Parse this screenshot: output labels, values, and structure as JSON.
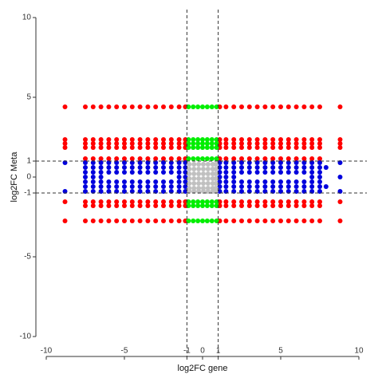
{
  "chart_data": {
    "type": "scatter",
    "x_label": "log2FC gene",
    "y_label": "log2FC Meta",
    "xlim": [
      -10,
      10
    ],
    "ylim": [
      -10,
      10
    ],
    "xticks": [
      -10,
      -5,
      -1,
      0,
      1,
      5,
      10
    ],
    "yticks": [
      -10,
      -5,
      -1,
      0,
      1,
      5,
      10
    ],
    "vlines": [
      -1,
      1
    ],
    "hlines": [
      -1,
      1
    ],
    "series": [
      {
        "color": "#ff0000",
        "y": 4.4,
        "x": [
          -8.8,
          -7.5,
          -7,
          -6.5,
          -6,
          -5.5,
          -5,
          -4.5,
          -4,
          -3.5,
          -3,
          -2.5,
          -2,
          -1.5,
          -1.1,
          1.1,
          1.5,
          2,
          2.5,
          3,
          3.5,
          4,
          4.5,
          5,
          5.5,
          6,
          6.5,
          7,
          7.5,
          8.8
        ]
      },
      {
        "color": "#ff0000",
        "y": 2.35,
        "x": [
          -8.8,
          -7.5,
          -7,
          -6.5,
          -6,
          -5.5,
          -5,
          -4.5,
          -4,
          -3.5,
          -3,
          -2.5,
          -2,
          -1.5,
          -1.1,
          1.1,
          1.5,
          2,
          2.5,
          3,
          3.5,
          4,
          4.5,
          5,
          5.5,
          6,
          6.5,
          7,
          7.5,
          8.8
        ]
      },
      {
        "color": "#ff0000",
        "y": 2.1,
        "x": [
          -8.8,
          -7.5,
          -7,
          -6.5,
          -6,
          -5.5,
          -5,
          -4.5,
          -4,
          -3.5,
          -3,
          -2.5,
          -2,
          -1.5,
          -1.1,
          1.1,
          1.5,
          2,
          2.5,
          3,
          3.5,
          4,
          4.5,
          5,
          5.5,
          6,
          6.5,
          7,
          7.5,
          8.8
        ]
      },
      {
        "color": "#ff0000",
        "y": 1.85,
        "x": [
          -8.8,
          -7.5,
          -7,
          -6.5,
          -6,
          -5.5,
          -5,
          -4.5,
          -4,
          -3.5,
          -3,
          -2.5,
          -2,
          -1.5,
          -1.1,
          1.1,
          1.5,
          2,
          2.5,
          3,
          3.5,
          4,
          4.5,
          5,
          5.5,
          6,
          6.5,
          7,
          7.5,
          8.8
        ]
      },
      {
        "color": "#ff0000",
        "y": 1.15,
        "x": [
          -7.5,
          -7,
          -6.5,
          -6,
          -5.5,
          -5,
          -4.5,
          -4,
          -3.5,
          -3,
          -2.5,
          -2,
          -1.5,
          -1.1,
          1.1,
          1.5,
          2,
          2.5,
          3,
          3.5,
          4,
          4.5,
          5,
          5.5,
          6,
          6.5,
          7,
          7.5
        ]
      },
      {
        "color": "#ff0000",
        "y": -1.55,
        "x": [
          -8.8,
          -7.5,
          -7,
          -6.5,
          -6,
          -5.5,
          -5,
          -4.5,
          -4,
          -3.5,
          -3,
          -2.5,
          -2,
          -1.5,
          -1.1,
          1.1,
          1.5,
          2,
          2.5,
          3,
          3.5,
          4,
          4.5,
          5,
          5.5,
          6,
          6.5,
          7,
          7.5,
          8.8
        ]
      },
      {
        "color": "#ff0000",
        "y": -1.8,
        "x": [
          -7.5,
          -7,
          -6.5,
          -6,
          -5.5,
          -5,
          -4.5,
          -4,
          -3.5,
          -3,
          -2.5,
          -2,
          -1.5,
          -1.1,
          1.1,
          1.5,
          2,
          2.5,
          3,
          3.5,
          4,
          4.5,
          5,
          5.5,
          6,
          6.5,
          7,
          7.5
        ]
      },
      {
        "color": "#ff0000",
        "y": -2.75,
        "x": [
          -8.8,
          -7.5,
          -7,
          -6.5,
          -6,
          -5.5,
          -5,
          -4.5,
          -4,
          -3.5,
          -3,
          -2.5,
          -2,
          -1.5,
          -1.1,
          1.1,
          1.5,
          2,
          2.5,
          3,
          3.5,
          4,
          4.5,
          5,
          5.5,
          6,
          6.5,
          7,
          7.5,
          8.8
        ]
      },
      {
        "color": "#00ee00",
        "y": 4.4,
        "x": [
          -0.9,
          -0.6,
          -0.3,
          0,
          0.3,
          0.6,
          0.9
        ]
      },
      {
        "color": "#00ee00",
        "y": 2.35,
        "x": [
          -0.9,
          -0.6,
          -0.3,
          0,
          0.3,
          0.6,
          0.9
        ]
      },
      {
        "color": "#00ee00",
        "y": 2.1,
        "x": [
          -0.9,
          -0.6,
          -0.3,
          0,
          0.3,
          0.6,
          0.9
        ]
      },
      {
        "color": "#00ee00",
        "y": 1.85,
        "x": [
          -0.9,
          -0.6,
          -0.3,
          0,
          0.3,
          0.6,
          0.9
        ]
      },
      {
        "color": "#00ee00",
        "y": 1.15,
        "x": [
          -0.9,
          -0.6,
          -0.3,
          0,
          0.3,
          0.6,
          0.9
        ]
      },
      {
        "color": "#00ee00",
        "y": -1.55,
        "x": [
          -0.9,
          -0.6,
          -0.3,
          0,
          0.3,
          0.6,
          0.9
        ]
      },
      {
        "color": "#00ee00",
        "y": -1.8,
        "x": [
          -0.9,
          -0.6,
          -0.3,
          0,
          0.3,
          0.6,
          0.9
        ]
      },
      {
        "color": "#00ee00",
        "y": -2.75,
        "x": [
          -0.9,
          -0.6,
          -0.3,
          0,
          0.3,
          0.6,
          0.9
        ]
      },
      {
        "color": "#0000dd",
        "y": 0.9,
        "x": [
          -8.8,
          -7.5,
          -7,
          -6.5,
          -6,
          -5.5,
          -5,
          -4.5,
          -4,
          -3.5,
          -3,
          -2.5,
          -2,
          -1.5,
          -1.1,
          1.1,
          1.5,
          2,
          2.5,
          3,
          3.5,
          4,
          4.5,
          5,
          5.5,
          6,
          6.5,
          7,
          7.5,
          8.8
        ]
      },
      {
        "color": "#0000dd",
        "y": 0.6,
        "x": [
          -7.5,
          -7,
          -6.5,
          -6,
          -5.5,
          -5,
          -4.5,
          -4,
          -3.5,
          -3,
          -2.5,
          -2,
          -1.5,
          -1.1,
          1.1,
          1.5,
          2,
          2.5,
          3,
          3.5,
          4,
          4.5,
          5,
          5.5,
          6,
          6.5,
          7,
          7.5,
          7.9
        ]
      },
      {
        "color": "#0000dd",
        "y": 0.3,
        "x": [
          -7.5,
          -7,
          -6.5,
          -6,
          -5.5,
          -5,
          -4.5,
          -4,
          -3.5,
          -3,
          -2.5,
          -2,
          -1.5,
          -1.1,
          1.1,
          1.5,
          2,
          2.5,
          3,
          3.5,
          4,
          4.5,
          5,
          5.5,
          6,
          6.5,
          7,
          7.5
        ]
      },
      {
        "color": "#0000dd",
        "y": 0,
        "x": [
          -7.5,
          -7,
          -6.5,
          -1.5,
          -1.1,
          1.1,
          1.5,
          2,
          7,
          7.5,
          8.8
        ]
      },
      {
        "color": "#0000dd",
        "y": -0.3,
        "x": [
          -7.5,
          -7,
          -6.5,
          -6,
          -5.5,
          -5,
          -4.5,
          -4,
          -3.5,
          -3,
          -2.5,
          -2,
          -1.5,
          -1.1,
          1.1,
          1.5,
          2,
          2.5,
          3,
          3.5,
          4,
          4.5,
          5,
          5.5,
          6,
          6.5,
          7,
          7.5
        ]
      },
      {
        "color": "#0000dd",
        "y": -0.6,
        "x": [
          -7.5,
          -7,
          -6.5,
          -6,
          -5.5,
          -5,
          -4.5,
          -4,
          -3.5,
          -3,
          -2.5,
          -2,
          -1.5,
          -1.1,
          1.1,
          1.5,
          2,
          2.5,
          3,
          3.5,
          4,
          4.5,
          5,
          5.5,
          6,
          6.5,
          7,
          7.5,
          7.9
        ]
      },
      {
        "color": "#0000dd",
        "y": -0.9,
        "x": [
          -8.8,
          -7.5,
          -7,
          -6.5,
          -6,
          -5.5,
          -5,
          -4.5,
          -4,
          -3.5,
          -3,
          -2.5,
          -2,
          -1.5,
          -1.1,
          1.1,
          1.5,
          2,
          2.5,
          3,
          3.5,
          4,
          4.5,
          5,
          5.5,
          6,
          6.5,
          7,
          7.5,
          8.8
        ]
      },
      {
        "color": "#c0c0c0",
        "y": 0.8,
        "x": [
          -0.85,
          -0.55,
          -0.25,
          0.05,
          0.35,
          0.65,
          0.85
        ]
      },
      {
        "color": "#c0c0c0",
        "y": 0.5,
        "x": [
          -0.85,
          -0.55,
          -0.25,
          0.05,
          0.35,
          0.65,
          0.85
        ]
      },
      {
        "color": "#c0c0c0",
        "y": 0.2,
        "x": [
          -0.85,
          -0.55,
          -0.25,
          0.05,
          0.35,
          0.65,
          0.85
        ]
      },
      {
        "color": "#c0c0c0",
        "y": -0.1,
        "x": [
          -0.85,
          -0.55,
          -0.25,
          0.05,
          0.35,
          0.65,
          0.85
        ]
      },
      {
        "color": "#c0c0c0",
        "y": -0.4,
        "x": [
          -0.85,
          -0.55,
          -0.25,
          0.05,
          0.35,
          0.65,
          0.85
        ]
      },
      {
        "color": "#c0c0c0",
        "y": -0.7,
        "x": [
          -0.85,
          -0.55,
          -0.25,
          0.05,
          0.35,
          0.65,
          0.85
        ]
      },
      {
        "color": "#c0c0c0",
        "y": -0.9,
        "x": [
          -0.85,
          -0.55,
          -0.25,
          0.05,
          0.35,
          0.65,
          0.85
        ]
      }
    ]
  }
}
